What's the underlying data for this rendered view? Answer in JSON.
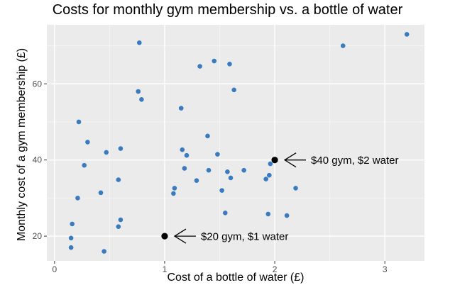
{
  "chart_data": {
    "type": "scatter",
    "title": "Costs for monthly gym membership vs. a bottle of water",
    "xlabel": "Cost of a bottle of water (£)",
    "ylabel": "Monthly cost of a gym membership (£)",
    "xlim": [
      -0.07,
      3.36
    ],
    "ylim": [
      13.5,
      75.5
    ],
    "x_ticks": [
      0,
      1,
      2,
      3
    ],
    "y_ticks": [
      20,
      40,
      60
    ],
    "x_tick_labels": [
      "0",
      "1",
      "2",
      "3"
    ],
    "y_tick_labels": [
      "20",
      "40",
      "60"
    ],
    "grid": true,
    "point_color": "#3a7bbf",
    "highlight_color": "#000000",
    "panel_color": "#ebebeb",
    "points": [
      {
        "x": 0.15,
        "y": 17.0
      },
      {
        "x": 0.15,
        "y": 19.5
      },
      {
        "x": 0.16,
        "y": 23.2
      },
      {
        "x": 0.21,
        "y": 30.0
      },
      {
        "x": 0.22,
        "y": 50.0
      },
      {
        "x": 0.27,
        "y": 38.6
      },
      {
        "x": 0.3,
        "y": 44.7
      },
      {
        "x": 0.42,
        "y": 31.4
      },
      {
        "x": 0.45,
        "y": 16.0
      },
      {
        "x": 0.47,
        "y": 42.0
      },
      {
        "x": 0.58,
        "y": 34.8
      },
      {
        "x": 0.58,
        "y": 22.5
      },
      {
        "x": 0.6,
        "y": 24.3
      },
      {
        "x": 0.6,
        "y": 43.0
      },
      {
        "x": 0.76,
        "y": 58.0
      },
      {
        "x": 0.77,
        "y": 70.8
      },
      {
        "x": 0.79,
        "y": 55.9
      },
      {
        "x": 1.08,
        "y": 31.2
      },
      {
        "x": 1.09,
        "y": 32.6
      },
      {
        "x": 1.15,
        "y": 53.6
      },
      {
        "x": 1.16,
        "y": 42.7
      },
      {
        "x": 1.18,
        "y": 37.8
      },
      {
        "x": 1.2,
        "y": 41.2
      },
      {
        "x": 1.29,
        "y": 34.6
      },
      {
        "x": 1.32,
        "y": 64.6
      },
      {
        "x": 1.39,
        "y": 46.3
      },
      {
        "x": 1.4,
        "y": 37.3
      },
      {
        "x": 1.45,
        "y": 66.0
      },
      {
        "x": 1.48,
        "y": 41.5
      },
      {
        "x": 1.52,
        "y": 32.0
      },
      {
        "x": 1.55,
        "y": 26.1
      },
      {
        "x": 1.57,
        "y": 36.9
      },
      {
        "x": 1.59,
        "y": 65.2
      },
      {
        "x": 1.6,
        "y": 35.3
      },
      {
        "x": 1.63,
        "y": 58.4
      },
      {
        "x": 1.72,
        "y": 37.3
      },
      {
        "x": 1.92,
        "y": 35.0
      },
      {
        "x": 1.94,
        "y": 25.8
      },
      {
        "x": 1.95,
        "y": 36.0
      },
      {
        "x": 1.96,
        "y": 39.0
      },
      {
        "x": 2.11,
        "y": 25.4
      },
      {
        "x": 2.19,
        "y": 32.6
      },
      {
        "x": 2.62,
        "y": 70.0
      },
      {
        "x": 3.2,
        "y": 73.0
      }
    ],
    "highlights": [
      {
        "x": 1,
        "y": 20,
        "label": "$20 gym, $1 water"
      },
      {
        "x": 2,
        "y": 40,
        "label": "$40 gym, $2 water"
      }
    ]
  }
}
